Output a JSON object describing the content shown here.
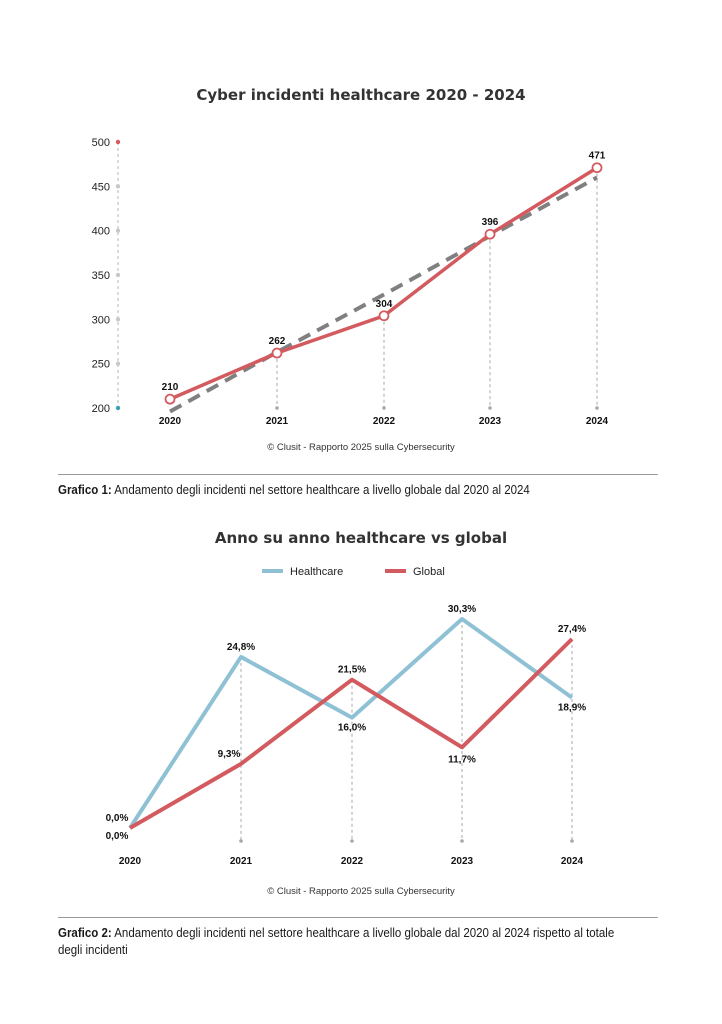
{
  "chart_data": [
    {
      "type": "line",
      "title": "Cyber incidenti healthcare 2020 - 2024",
      "categories": [
        "2020",
        "2021",
        "2022",
        "2023",
        "2024"
      ],
      "series": [
        {
          "values": [
            210,
            262,
            304,
            396,
            471
          ],
          "color": "#d35a5f",
          "style": "solid"
        },
        {
          "values": [
            196,
            263,
            328,
            394,
            460
          ],
          "color": "#808080",
          "style": "dashed-trend"
        }
      ],
      "data_labels": [
        "210",
        "262",
        "304",
        "396",
        "471"
      ],
      "yticks": [
        "500",
        "450",
        "400",
        "350",
        "300",
        "250",
        "200"
      ],
      "ylim": [
        200,
        500
      ],
      "grid": false,
      "credit": "© Clusit - Rapporto 2025 sulla Cybersecurity"
    },
    {
      "type": "line",
      "title": "Anno su anno healthcare vs global",
      "categories": [
        "2020",
        "2021",
        "2022",
        "2023",
        "2024"
      ],
      "series": [
        {
          "name": "Healthcare",
          "values": [
            0.0,
            24.8,
            16.0,
            30.3,
            18.9
          ],
          "labels": [
            "0,0%",
            "24,8%",
            "16,0%",
            "30,3%",
            "18,9%"
          ],
          "color": "#8fc1d5"
        },
        {
          "name": "Global",
          "values": [
            0.0,
            9.3,
            21.5,
            11.7,
            27.4
          ],
          "labels": [
            "0,0%",
            "9,3%",
            "21,5%",
            "11,7%",
            "27,4%"
          ],
          "color": "#d35a5f"
        }
      ],
      "ylim": [
        0,
        30.3
      ],
      "legend": "top-center",
      "grid": false,
      "credit": "© Clusit - Rapporto 2025 sulla Cybersecurity"
    }
  ],
  "captions": [
    {
      "label": "Grafico 1:",
      "text": "Andamento degli incidenti nel settore healthcare a livello globale dal 2020 al 2024"
    },
    {
      "label": "Grafico 2:",
      "text": "Andamento degli incidenti nel settore healthcare a livello globale dal 2020 al 2024 rispetto al totale degli incidenti"
    }
  ]
}
